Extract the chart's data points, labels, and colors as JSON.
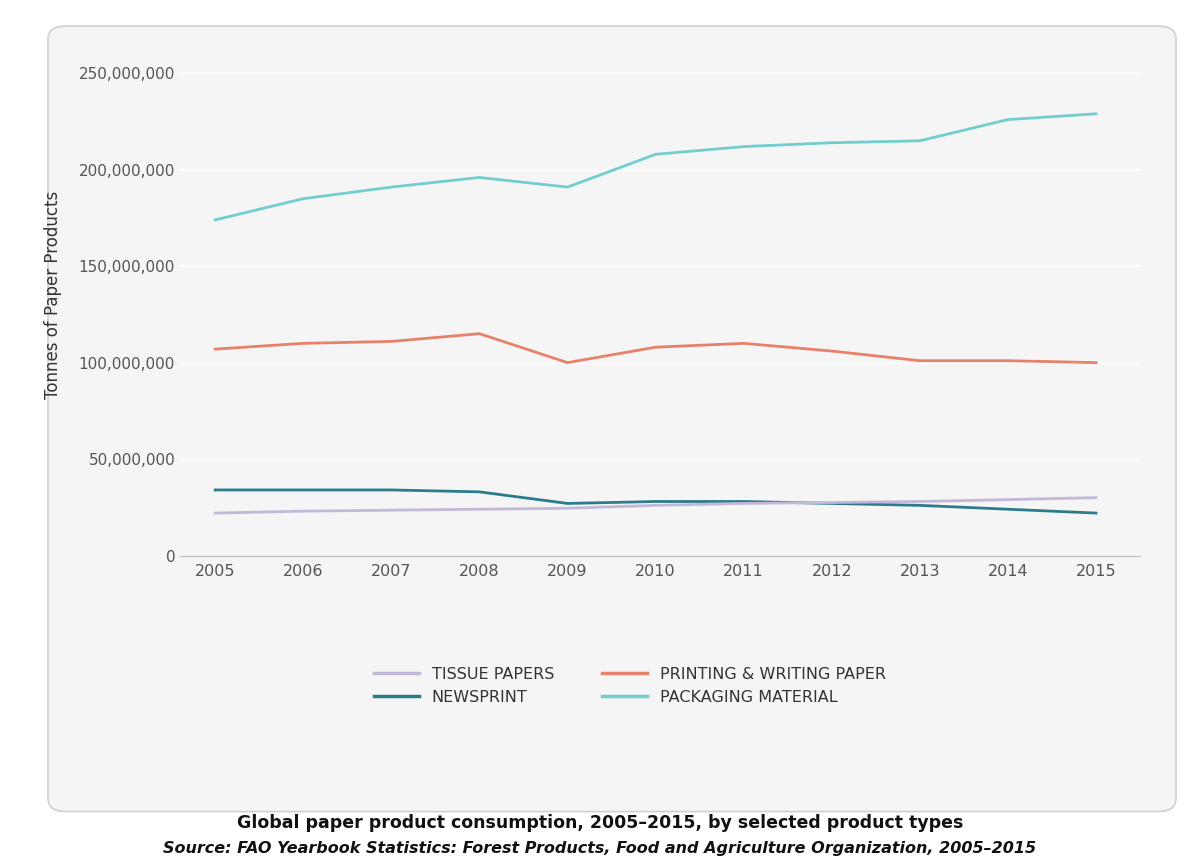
{
  "years": [
    2005,
    2006,
    2007,
    2008,
    2009,
    2010,
    2011,
    2012,
    2013,
    2014,
    2015
  ],
  "tissue_papers": [
    22000000,
    23000000,
    23500000,
    24000000,
    24500000,
    26000000,
    27000000,
    27500000,
    28000000,
    29000000,
    30000000
  ],
  "newsprint": [
    34000000,
    34000000,
    34000000,
    33000000,
    27000000,
    28000000,
    28000000,
    27000000,
    26000000,
    24000000,
    22000000
  ],
  "printing_writing": [
    107000000,
    110000000,
    111000000,
    115000000,
    100000000,
    108000000,
    110000000,
    106000000,
    101000000,
    101000000,
    100000000
  ],
  "packaging": [
    174000000,
    185000000,
    191000000,
    196000000,
    191000000,
    208000000,
    212000000,
    214000000,
    215000000,
    226000000,
    229000000
  ],
  "tissue_color": "#c4b8d8",
  "newsprint_color": "#2b7b8c",
  "printing_color": "#e8816a",
  "packaging_color": "#72cece",
  "panel_bg": "#f5f5f5",
  "outer_bg": "#ffffff",
  "ylabel": "Tonnes of Paper Products",
  "ylim": [
    0,
    270000000
  ],
  "yticks": [
    0,
    50000000,
    100000000,
    150000000,
    200000000,
    250000000
  ],
  "legend_labels": [
    "TISSUE PAPERS",
    "NEWSPRINT",
    "PRINTING & WRITING PAPER",
    "PACKAGING MATERIAL"
  ],
  "title": "Global paper product consumption, 2005–2015, by selected product types",
  "source": "Source: FAO Yearbook Statistics: Forest Products, Food and Agriculture Organization, 2005–2015"
}
